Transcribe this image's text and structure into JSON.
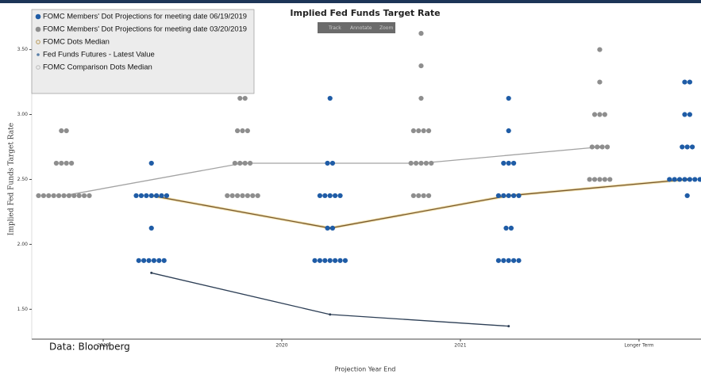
{
  "chart_data": {
    "type": "scatter",
    "title": "Implied Fed Funds Target Rate",
    "toolbar": [
      "Track",
      "Annotate",
      "Zoom"
    ],
    "x_label": "Projection Year End",
    "y_label": "Implied Fed Funds Target Rate",
    "annotation": "Data: Bloomberg",
    "xlim": [
      -0.4,
      3.347
    ],
    "xticks": [
      {
        "value": 0,
        "label": "2019"
      },
      {
        "value": 1,
        "label": "2020"
      },
      {
        "value": 2,
        "label": "2021"
      },
      {
        "value": 3,
        "label": "Longer Term"
      }
    ],
    "ylim": [
      1.27,
      3.76
    ],
    "yticks": [
      {
        "value": 1.5,
        "label": "1.50"
      },
      {
        "value": 2,
        "label": "2.00"
      },
      {
        "value": 2.5,
        "label": "2.50"
      },
      {
        "value": 3,
        "label": "3.00"
      },
      {
        "value": 3.5,
        "label": "3.50"
      }
    ],
    "grid": false,
    "legend": "upper left",
    "series": [
      {
        "name": "FOMC Members' Dot Projections for meeting date 06/19/2019",
        "color": "#1f5ca6",
        "points": [
          {
            "x": 0.27,
            "y": 2.625,
            "count": 1
          },
          {
            "x": 0.27,
            "y": 2.375,
            "count": 7
          },
          {
            "x": 0.27,
            "y": 2.125,
            "count": 1
          },
          {
            "x": 0.27,
            "y": 1.875,
            "count": 6
          },
          {
            "x": 1.27,
            "y": 3.125,
            "count": 1
          },
          {
            "x": 1.27,
            "y": 2.625,
            "count": 2
          },
          {
            "x": 1.27,
            "y": 2.375,
            "count": 5
          },
          {
            "x": 1.27,
            "y": 2.125,
            "count": 2
          },
          {
            "x": 1.27,
            "y": 1.875,
            "count": 7
          },
          {
            "x": 2.27,
            "y": 3.125,
            "count": 1
          },
          {
            "x": 2.27,
            "y": 2.875,
            "count": 1
          },
          {
            "x": 2.27,
            "y": 2.625,
            "count": 3
          },
          {
            "x": 2.27,
            "y": 2.375,
            "count": 5
          },
          {
            "x": 2.27,
            "y": 2.125,
            "count": 2
          },
          {
            "x": 2.27,
            "y": 1.875,
            "count": 5
          },
          {
            "x": 3.27,
            "y": 3.25,
            "count": 2
          },
          {
            "x": 3.27,
            "y": 3,
            "count": 2
          },
          {
            "x": 3.27,
            "y": 2.75,
            "count": 3
          },
          {
            "x": 3.27,
            "y": 2.5,
            "count": 8
          },
          {
            "x": 3.27,
            "y": 2.375,
            "count": 1
          }
        ]
      },
      {
        "name": "FOMC Members' Dot Projections for meeting date 03/20/2019",
        "color": "#8e8e8e",
        "points": [
          {
            "x": -0.22,
            "y": 2.875,
            "count": 2
          },
          {
            "x": -0.22,
            "y": 2.625,
            "count": 4
          },
          {
            "x": -0.22,
            "y": 2.375,
            "count": 11
          },
          {
            "x": 0.78,
            "y": 3.375,
            "count": 1
          },
          {
            "x": 0.78,
            "y": 3.125,
            "count": 2
          },
          {
            "x": 0.78,
            "y": 2.875,
            "count": 3
          },
          {
            "x": 0.78,
            "y": 2.625,
            "count": 4
          },
          {
            "x": 0.78,
            "y": 2.375,
            "count": 7
          },
          {
            "x": 1.78,
            "y": 3.625,
            "count": 1
          },
          {
            "x": 1.78,
            "y": 3.375,
            "count": 1
          },
          {
            "x": 1.78,
            "y": 3.125,
            "count": 1
          },
          {
            "x": 1.78,
            "y": 2.875,
            "count": 4
          },
          {
            "x": 1.78,
            "y": 2.625,
            "count": 5
          },
          {
            "x": 1.78,
            "y": 2.375,
            "count": 4
          },
          {
            "x": 2.78,
            "y": 3.5,
            "count": 1
          },
          {
            "x": 2.78,
            "y": 3.25,
            "count": 1
          },
          {
            "x": 2.78,
            "y": 3,
            "count": 3
          },
          {
            "x": 2.78,
            "y": 2.75,
            "count": 4
          },
          {
            "x": 2.78,
            "y": 2.5,
            "count": 5
          }
        ]
      },
      {
        "name": "FOMC Dots Median",
        "color": "#7a5a2e",
        "x": [
          0.27,
          1.27,
          2.27,
          3.27
        ],
        "values": [
          2.375,
          2.125,
          2.375,
          2.5
        ]
      },
      {
        "name": "Fed Funds Futures - Latest Value",
        "color": "#2c3e55",
        "x": [
          0.27,
          1.27,
          2.27
        ],
        "values": [
          1.78,
          1.46,
          1.37
        ]
      },
      {
        "name": "FOMC Comparison Dots Median",
        "color": "#a3a3a3",
        "x": [
          -0.22,
          0.78,
          1.78,
          2.78
        ],
        "values": [
          2.375,
          2.625,
          2.625,
          2.75
        ]
      }
    ]
  }
}
